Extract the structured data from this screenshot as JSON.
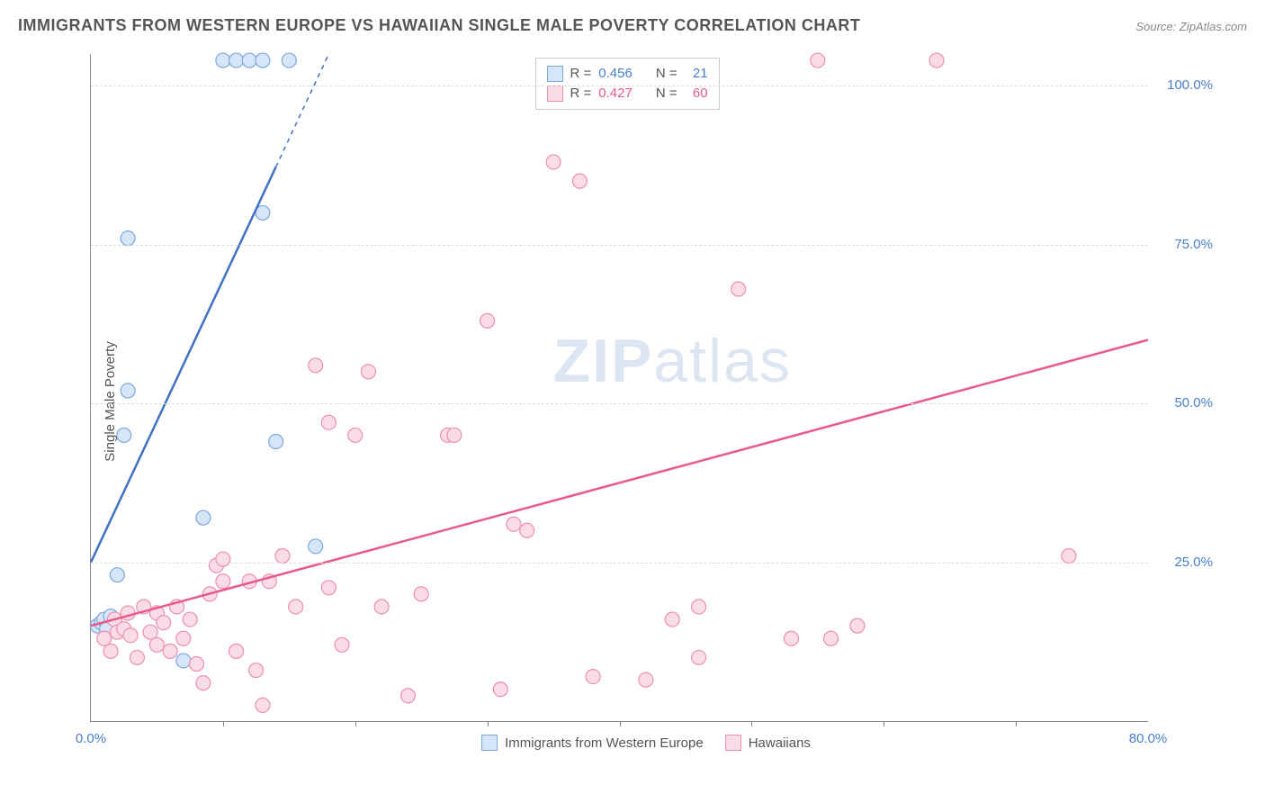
{
  "title": "IMMIGRANTS FROM WESTERN EUROPE VS HAWAIIAN SINGLE MALE POVERTY CORRELATION CHART",
  "source": "Source: ZipAtlas.com",
  "ylabel": "Single Male Poverty",
  "watermark_bold": "ZIP",
  "watermark_rest": "atlas",
  "chart": {
    "type": "scatter",
    "xlim": [
      0,
      80
    ],
    "ylim": [
      0,
      105
    ],
    "x_ticks_label": {
      "0": "0.0%",
      "80": "80.0%"
    },
    "x_minor_ticks": [
      10,
      20,
      30,
      40,
      50,
      60,
      70
    ],
    "y_grid": [
      25,
      50,
      75,
      100
    ],
    "y_ticks_label": {
      "25": "25.0%",
      "50": "50.0%",
      "75": "75.0%",
      "100": "100.0%"
    },
    "background_color": "#ffffff",
    "grid_color": "#dddddd",
    "axis_color": "#888888",
    "tick_label_color": "#4a7ec9",
    "marker_radius": 8,
    "marker_stroke_width": 1.2,
    "line_width": 2.5,
    "series": [
      {
        "name": "Immigrants from Western Europe",
        "key": "blue",
        "fill": "#d6e5f7",
        "stroke": "#7ca8dd",
        "line_color": "#3f72c4",
        "R": "0.456",
        "N": "21",
        "trend": {
          "x1": 0,
          "y1": 25,
          "x2": 18,
          "y2": 105,
          "dash_from_x": 14
        },
        "points": [
          [
            0.5,
            15
          ],
          [
            0.8,
            15.5
          ],
          [
            1.0,
            16
          ],
          [
            1.2,
            14.5
          ],
          [
            1.5,
            16.5
          ],
          [
            2.0,
            23
          ],
          [
            2.5,
            45
          ],
          [
            2.8,
            52
          ],
          [
            2.8,
            76
          ],
          [
            7.0,
            9.5
          ],
          [
            8.5,
            32
          ],
          [
            10.0,
            104
          ],
          [
            11.0,
            104
          ],
          [
            12.0,
            104
          ],
          [
            13.0,
            104
          ],
          [
            15.0,
            104
          ],
          [
            13.0,
            80
          ],
          [
            14.0,
            44
          ],
          [
            17.0,
            27.5
          ]
        ]
      },
      {
        "name": "Hawaiians",
        "key": "pink",
        "fill": "#fadce7",
        "stroke": "#ec8fb0",
        "line_color": "#e85a8a",
        "R": "0.427",
        "N": "60",
        "trend": {
          "x1": 0,
          "y1": 15,
          "x2": 80,
          "y2": 60
        },
        "points": [
          [
            1,
            13
          ],
          [
            1.5,
            11
          ],
          [
            1.8,
            16
          ],
          [
            2,
            14
          ],
          [
            2.5,
            14.5
          ],
          [
            2.8,
            17
          ],
          [
            3,
            13.5
          ],
          [
            3.5,
            10
          ],
          [
            4,
            18
          ],
          [
            4.5,
            14
          ],
          [
            5,
            12
          ],
          [
            5,
            17
          ],
          [
            5.5,
            15.5
          ],
          [
            6,
            11
          ],
          [
            6.5,
            18
          ],
          [
            7,
            13
          ],
          [
            7.5,
            16
          ],
          [
            8,
            9
          ],
          [
            8.5,
            6
          ],
          [
            9,
            20
          ],
          [
            9.5,
            24.5
          ],
          [
            10,
            22
          ],
          [
            10,
            25.5
          ],
          [
            11,
            11
          ],
          [
            12,
            22
          ],
          [
            12.5,
            8
          ],
          [
            13,
            2.5
          ],
          [
            13.5,
            22
          ],
          [
            14.5,
            26
          ],
          [
            15.5,
            18
          ],
          [
            17,
            56
          ],
          [
            18,
            21
          ],
          [
            18,
            47
          ],
          [
            19,
            12
          ],
          [
            20,
            45
          ],
          [
            21,
            55
          ],
          [
            22,
            18
          ],
          [
            24,
            4
          ],
          [
            25,
            20
          ],
          [
            27,
            45
          ],
          [
            27.5,
            45
          ],
          [
            30,
            63
          ],
          [
            31,
            5
          ],
          [
            32,
            31
          ],
          [
            33,
            30
          ],
          [
            35,
            88
          ],
          [
            37,
            85
          ],
          [
            38,
            7
          ],
          [
            42,
            6.5
          ],
          [
            44,
            16
          ],
          [
            46,
            18
          ],
          [
            46,
            10
          ],
          [
            49,
            68
          ],
          [
            53,
            13
          ],
          [
            55,
            104
          ],
          [
            56,
            13
          ],
          [
            58,
            15
          ],
          [
            64,
            104
          ],
          [
            74,
            26
          ]
        ]
      }
    ]
  },
  "legend_bottom": [
    {
      "key": "blue",
      "label": "Immigrants from Western Europe"
    },
    {
      "key": "pink",
      "label": "Hawaiians"
    }
  ]
}
